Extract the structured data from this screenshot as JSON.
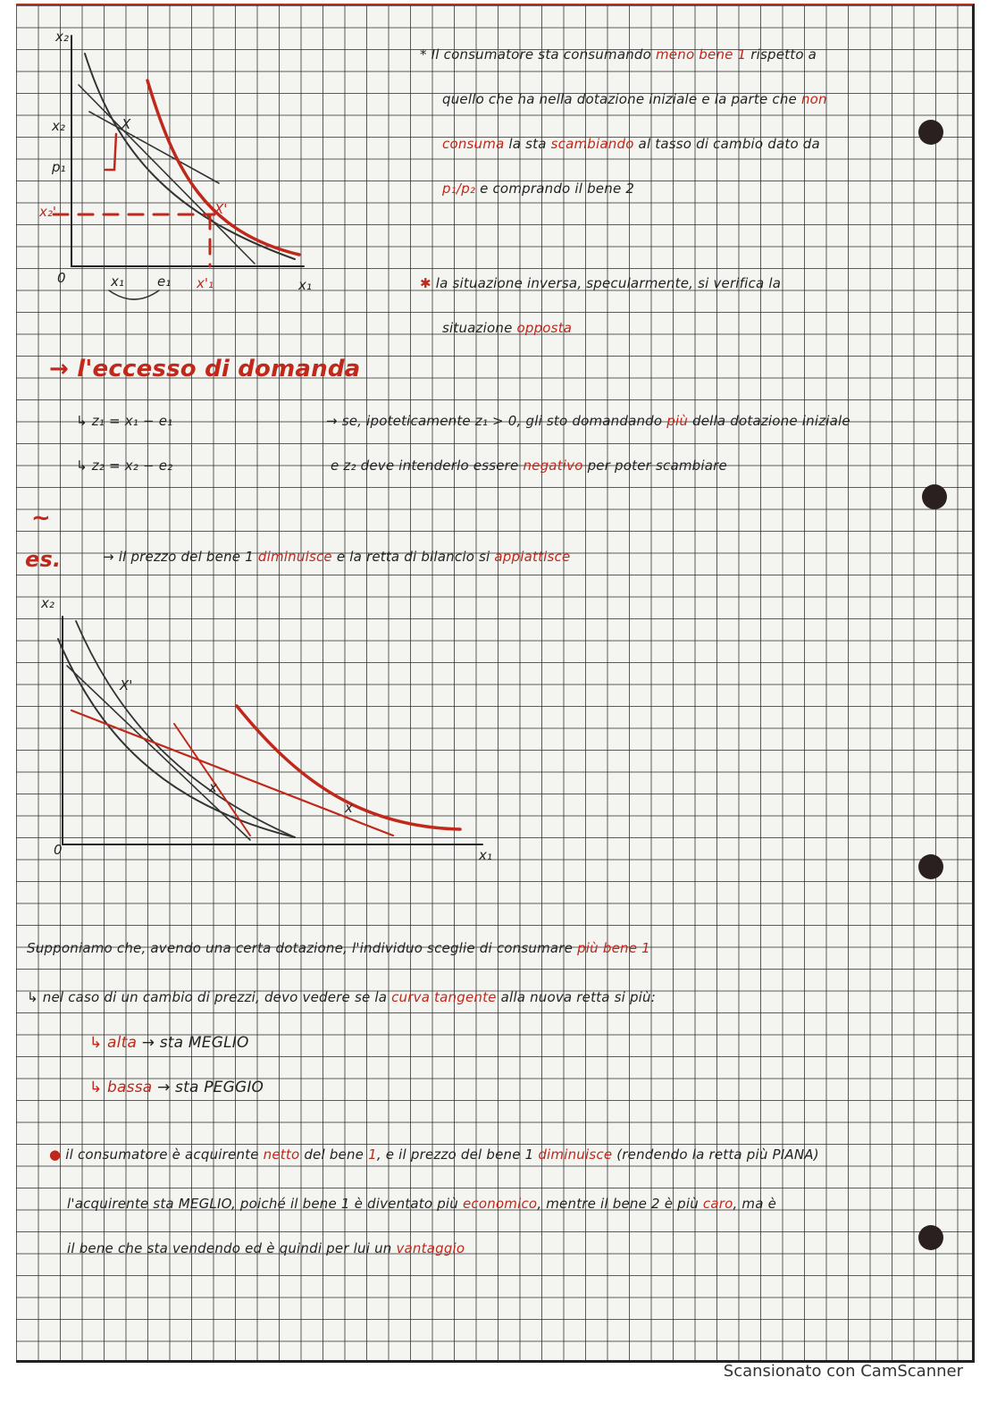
{
  "notes": [
    {
      "segments": [
        {
          "text": "* Il consumatore sta consumando ",
          "color": "#222222"
        },
        {
          "text": "meno bene 1",
          "color": "#c0281c"
        },
        {
          "text": " rispetto a",
          "color": "#222222"
        }
      ]
    },
    {
      "segments": [
        {
          "text": "quello che ha nella dotazione iniziale e la parte che ",
          "color": "#222222"
        },
        {
          "text": "non",
          "color": "#c0281c"
        }
      ]
    },
    {
      "segments": [
        {
          "text": "consuma",
          "color": "#c0281c"
        },
        {
          "text": " la sta ",
          "color": "#222222"
        },
        {
          "text": "scambiando",
          "color": "#c0281c"
        },
        {
          "text": " al tasso di cambio dato da",
          "color": "#222222"
        }
      ]
    },
    {
      "segments": [
        {
          "text": "p₁/p₂",
          "color": "#c0281c"
        },
        {
          "text": "  e comprando il bene 2",
          "color": "#222222"
        }
      ]
    },
    {
      "segments": [
        {
          "text": "✱",
          "color": "#c0281c"
        },
        {
          "text": " la situazione inversa, specularmente, si verifica la",
          "color": "#222222"
        }
      ]
    },
    {
      "segments": [
        {
          "text": "situazione ",
          "color": "#222222"
        },
        {
          "text": "opposta",
          "color": "#c0281c"
        }
      ]
    },
    {
      "segments": [
        {
          "text": "→ l'eccesso di domanda",
          "color": "#c0281c"
        }
      ]
    },
    {
      "segments": [
        {
          "text": "↳  z₁ = x₁ − e₁",
          "color": "#222222"
        }
      ]
    },
    {
      "segments": [
        {
          "text": "→ se, ipoteticamente z₁ > 0, gli sto domandando ",
          "color": "#222222"
        },
        {
          "text": "più",
          "color": "#c0281c"
        },
        {
          "text": " della dotazione iniziale",
          "color": "#222222"
        }
      ]
    },
    {
      "segments": [
        {
          "text": "↳  z₂ = x₂ − e₂",
          "color": "#222222"
        }
      ]
    },
    {
      "segments": [
        {
          "text": "e z₂ deve intenderlo essere ",
          "color": "#222222"
        },
        {
          "text": "negativo",
          "color": "#c0281c"
        },
        {
          "text": " per poter scambiare",
          "color": "#222222"
        }
      ]
    },
    {
      "segments": [
        {
          "text": "~",
          "color": "#c0281c"
        }
      ]
    },
    {
      "segments": [
        {
          "text": "es.",
          "color": "#c0281c"
        }
      ]
    },
    {
      "segments": [
        {
          "text": "→ il prezzo del bene 1 ",
          "color": "#222222"
        },
        {
          "text": "diminuisce",
          "color": "#c0281c"
        },
        {
          "text": " e la retta di bilancio si ",
          "color": "#222222"
        },
        {
          "text": "appiattisce",
          "color": "#c0281c"
        }
      ]
    },
    {
      "segments": [
        {
          "text": "Supponiamo che, avendo una certa dotazione, l'individuo sceglie di consumare ",
          "color": "#222222"
        },
        {
          "text": "più bene 1",
          "color": "#c0281c"
        }
      ]
    },
    {
      "segments": [
        {
          "text": "↳ nel caso di un cambio di prezzi, devo vedere se la ",
          "color": "#222222"
        },
        {
          "text": "curva tangente",
          "color": "#c0281c"
        },
        {
          "text": " alla nuova retta si più:",
          "color": "#222222"
        }
      ]
    },
    {
      "segments": [
        {
          "text": "↳",
          "color": "#c0281c"
        },
        {
          "text": "  alta",
          "color": "#c0281c"
        },
        {
          "text": "      → sta MEGLIO",
          "color": "#222222"
        }
      ]
    },
    {
      "segments": [
        {
          "text": "↳",
          "color": "#c0281c"
        },
        {
          "text": "  bassa",
          "color": "#c0281c"
        },
        {
          "text": "    → sta PEGGIO",
          "color": "#222222"
        }
      ]
    },
    {
      "segments": [
        {
          "text": "●",
          "color": "#c0281c"
        },
        {
          "text": " il consumatore è acquirente ",
          "color": "#222222"
        },
        {
          "text": "netto",
          "color": "#c0281c"
        },
        {
          "text": " del bene ",
          "color": "#222222"
        },
        {
          "text": "1",
          "color": "#c0281c"
        },
        {
          "text": ", e il prezzo del bene 1 ",
          "color": "#222222"
        },
        {
          "text": "diminuisce",
          "color": "#c0281c"
        },
        {
          "text": " (rendendo la retta più PIANA)",
          "color": "#222222"
        }
      ]
    },
    {
      "segments": [
        {
          "text": "l'acquirente sta MEGLIO, poiché il bene 1 è diventato più ",
          "color": "#222222"
        },
        {
          "text": "economico",
          "color": "#c0281c"
        },
        {
          "text": ", mentre il bene 2 è più ",
          "color": "#222222"
        },
        {
          "text": "caro",
          "color": "#c0281c"
        },
        {
          "text": ", ma è",
          "color": "#222222"
        }
      ]
    },
    {
      "segments": [
        {
          "text": "il bene che sta vendendo ed è quindi per lui un ",
          "color": "#222222"
        },
        {
          "text": "vantaggio",
          "color": "#c0281c"
        }
      ]
    }
  ],
  "diagram_1": {
    "labels": [
      "x₂",
      "x₂",
      "p₁",
      "x₂'",
      "X",
      "X'",
      "0",
      "x₁",
      "e₁",
      "x'₁",
      "x₁"
    ]
  },
  "diagram_2": {
    "labels": [
      "x₂",
      "X'",
      "x",
      "x",
      "0",
      "x₁"
    ]
  },
  "footer": "Scansionato con CamScanner"
}
